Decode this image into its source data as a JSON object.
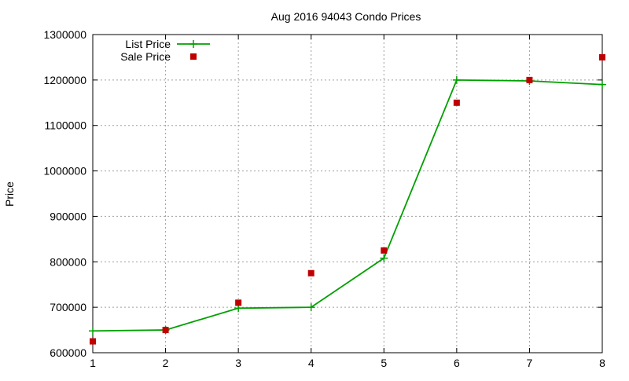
{
  "chart_data": {
    "type": "line",
    "title": "Aug 2016 94043 Condo Prices",
    "xlabel": "",
    "ylabel": "Price",
    "xlim": [
      1,
      8
    ],
    "ylim": [
      600000,
      1300000
    ],
    "x_ticks": [
      1,
      2,
      3,
      4,
      5,
      6,
      7,
      8
    ],
    "y_ticks": [
      600000,
      700000,
      800000,
      900000,
      1000000,
      1100000,
      1200000,
      1300000
    ],
    "grid": true,
    "legend_position": "top-left",
    "series": [
      {
        "name": "List Price",
        "style": "line-with-plus-markers",
        "color": "#00a000",
        "x": [
          1,
          2,
          3,
          4,
          5,
          6,
          7,
          8
        ],
        "values": [
          648000,
          650000,
          698000,
          700000,
          808000,
          1200000,
          1198000,
          1190000
        ]
      },
      {
        "name": "Sale Price",
        "style": "square-markers",
        "color": "#c00000",
        "x": [
          1,
          2,
          3,
          4,
          5,
          6,
          7,
          8
        ],
        "values": [
          625000,
          650000,
          710000,
          775000,
          825000,
          1150000,
          1200000,
          1250000
        ]
      }
    ]
  }
}
